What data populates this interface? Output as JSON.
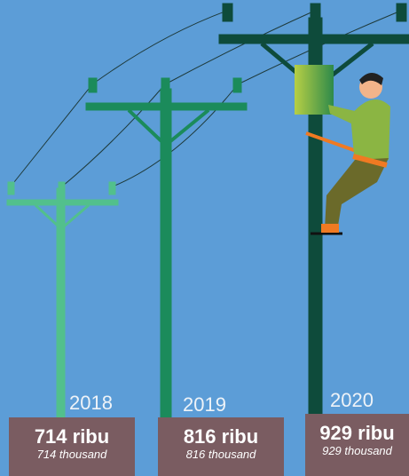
{
  "items": [
    {
      "year": "2018",
      "value": "714 ribu",
      "translation": "714 thousand"
    },
    {
      "year": "2019",
      "value": "816 ribu",
      "translation": "816 thousand"
    },
    {
      "year": "2020",
      "value": "929 ribu",
      "translation": "929 thousand"
    }
  ]
}
